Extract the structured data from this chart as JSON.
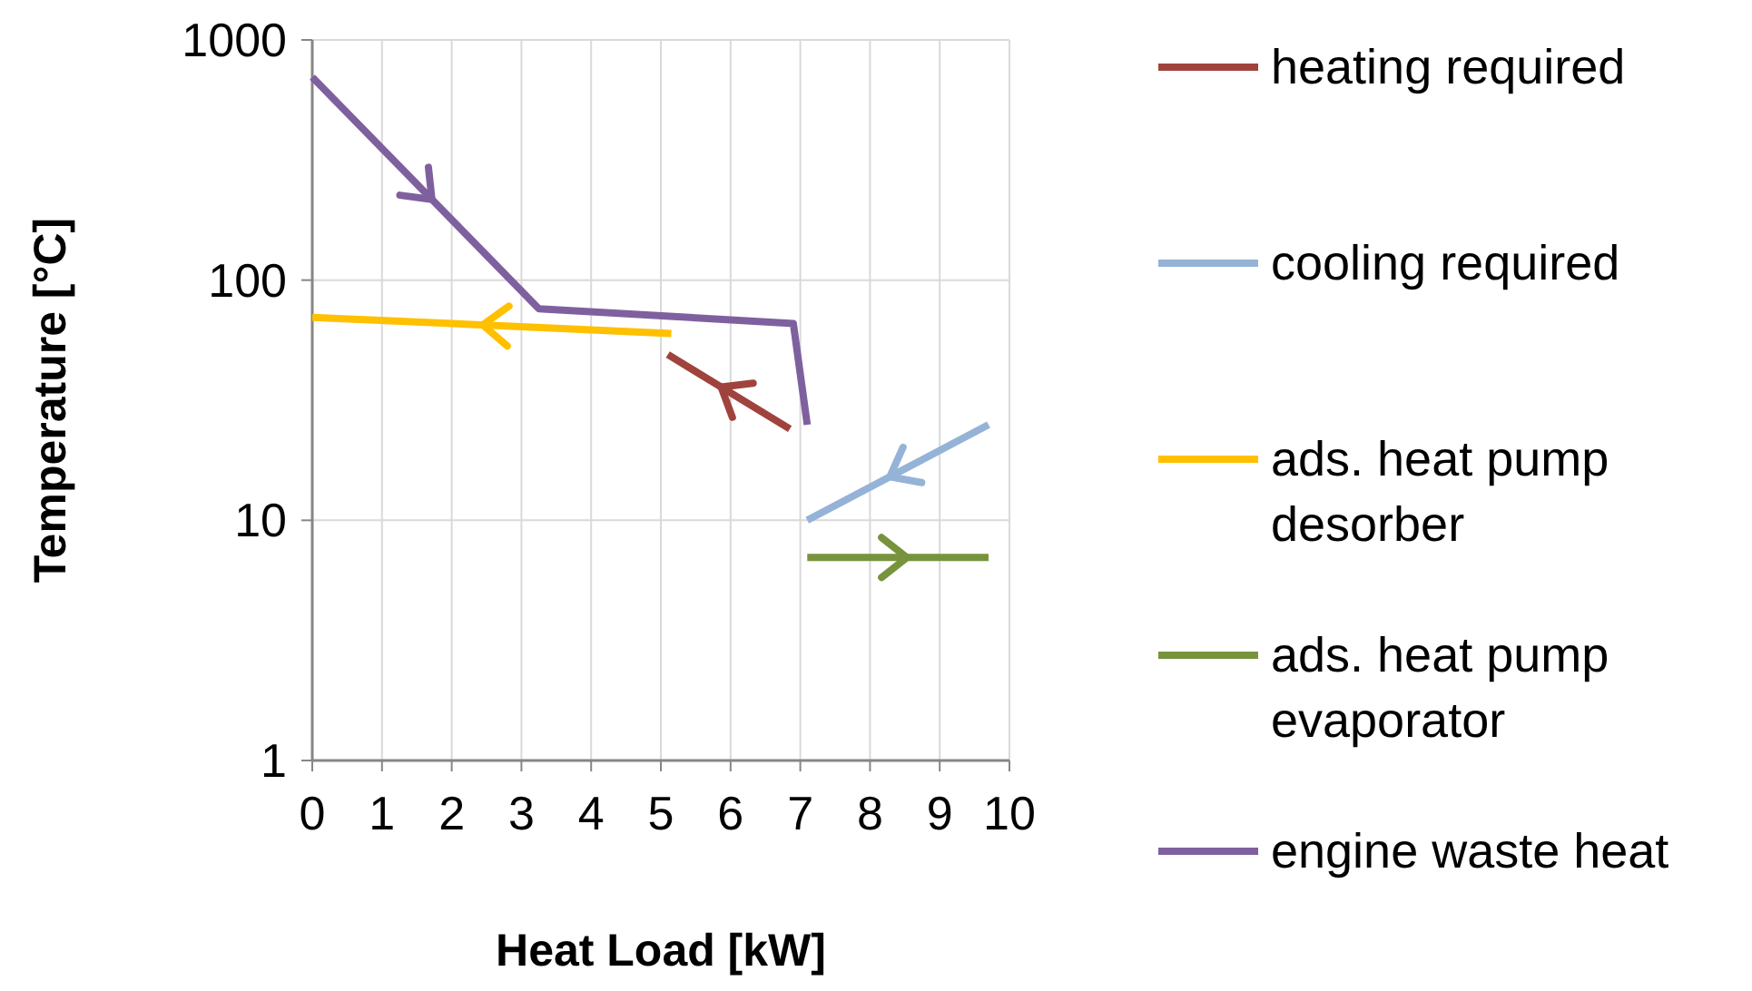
{
  "chart_data": {
    "type": "line",
    "xlabel": "Heat Load [kW]",
    "ylabel": "Temperature [°C]",
    "log": "y",
    "grid": true,
    "legend": "right",
    "marker": "none",
    "line_style": "solid",
    "xlim": [
      0,
      10
    ],
    "xticks": [
      0,
      1,
      2,
      3,
      4,
      5,
      6,
      7,
      8,
      9,
      10
    ],
    "ylim": [
      1,
      1000
    ],
    "yticks": [
      1,
      10,
      100,
      1000
    ],
    "series": [
      {
        "name": "heating required",
        "color": "#a0433d",
        "x": [
          6.85,
          5.1
        ],
        "values": [
          24,
          49
        ]
      },
      {
        "name": "cooling required",
        "color": "#95b3d7",
        "x": [
          9.7,
          7.1
        ],
        "values": [
          25,
          10
        ]
      },
      {
        "name": "ads. heat pump desorber",
        "color": "#ffc000",
        "x": [
          5.15,
          0
        ],
        "values": [
          60,
          70
        ]
      },
      {
        "name": "ads. heat pump evaporator",
        "color": "#77933c",
        "x": [
          7.1,
          9.7
        ],
        "values": [
          7,
          7
        ]
      },
      {
        "name": "engine waste heat",
        "color": "#7f609f",
        "x": [
          0,
          3.25,
          6.9,
          7.1
        ],
        "values": [
          700,
          76,
          66,
          25
        ]
      }
    ]
  }
}
